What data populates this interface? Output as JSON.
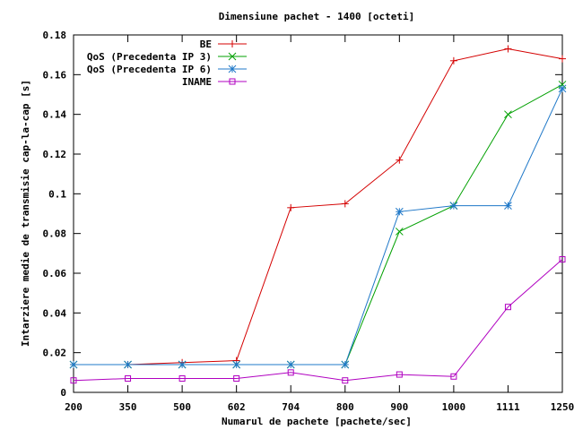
{
  "chart_data": {
    "type": "line",
    "title": "Dimensiune pachet - 1400 [octeti]",
    "xlabel": "Numarul de pachete [pachete/sec]",
    "ylabel": "Intarziere medie de transmisie cap-la-cap [s]",
    "categories": [
      "200",
      "350",
      "500",
      "602",
      "704",
      "800",
      "900",
      "1000",
      "1111",
      "1250"
    ],
    "ylim": [
      0,
      0.18
    ],
    "yticks": [
      "0",
      "0.02",
      "0.04",
      "0.06",
      "0.08",
      "0.1",
      "0.12",
      "0.14",
      "0.16",
      "0.18"
    ],
    "grid": false,
    "legend_position": "top-right",
    "series": [
      {
        "name": "BE",
        "color": "#d40000",
        "marker": "plus",
        "values": [
          0.014,
          0.014,
          0.015,
          0.016,
          0.093,
          0.095,
          0.117,
          0.167,
          0.173,
          0.168
        ]
      },
      {
        "name": "QoS (Precedenta IP 3)",
        "color": "#00a000",
        "marker": "cross",
        "values": [
          0.014,
          0.014,
          0.014,
          0.014,
          0.014,
          0.014,
          0.081,
          0.094,
          0.14,
          0.155
        ]
      },
      {
        "name": "QoS (Precedenta IP 6)",
        "color": "#1f78c8",
        "marker": "star",
        "values": [
          0.014,
          0.014,
          0.014,
          0.014,
          0.014,
          0.014,
          0.091,
          0.094,
          0.094,
          0.153
        ]
      },
      {
        "name": "INAME",
        "color": "#b000c0",
        "marker": "square",
        "values": [
          0.006,
          0.007,
          0.007,
          0.007,
          0.01,
          0.006,
          0.009,
          0.008,
          0.043,
          0.067
        ]
      }
    ]
  }
}
